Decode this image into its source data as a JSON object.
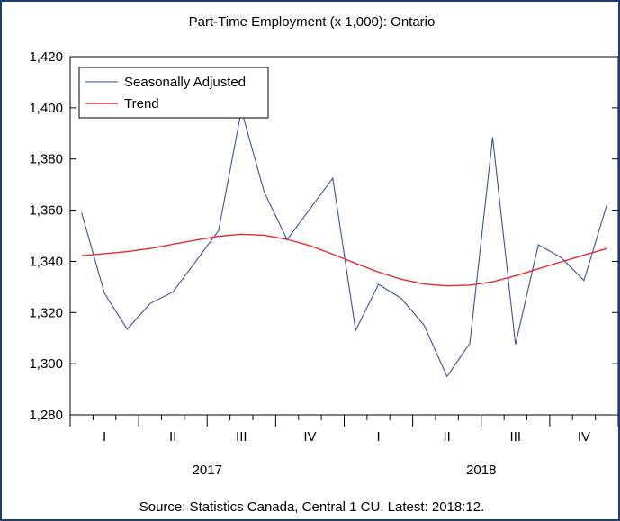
{
  "chart_data": {
    "type": "line",
    "title": "Part-Time Employment (x 1,000): Ontario",
    "source": "Source: Statistics Canada, Central 1 CU. Latest: 2018:12.",
    "x": [
      "2017:01",
      "2017:02",
      "2017:03",
      "2017:04",
      "2017:05",
      "2017:06",
      "2017:07",
      "2017:08",
      "2017:09",
      "2017:10",
      "2017:11",
      "2017:12",
      "2018:01",
      "2018:02",
      "2018:03",
      "2018:04",
      "2018:05",
      "2018:06",
      "2018:07",
      "2018:08",
      "2018:09",
      "2018:10",
      "2018:11",
      "2018:12"
    ],
    "quarter_labels": [
      "I",
      "II",
      "III",
      "IV",
      "I",
      "II",
      "III",
      "IV"
    ],
    "year_labels": [
      "2017",
      "2018"
    ],
    "ylim": [
      1280,
      1420
    ],
    "yticks": [
      1280,
      1300,
      1320,
      1340,
      1360,
      1380,
      1400,
      1420
    ],
    "ytick_labels": [
      "1,280",
      "1,300",
      "1,320",
      "1,340",
      "1,360",
      "1,380",
      "1,400",
      "1,420"
    ],
    "legend_position": "top-left",
    "series": [
      {
        "name": "Seasonally Adjusted",
        "color": "#3a4fa0",
        "values": [
          1359,
          1327.5,
          1313.5,
          1323.5,
          1328,
          1340,
          1352,
          1399,
          1367,
          1348.5,
          1360.5,
          1372.5,
          1313,
          1331,
          1325.5,
          1315,
          1295,
          1308,
          1388.5,
          1307.5,
          1346.5,
          1341.5,
          1332.5,
          1362
        ]
      },
      {
        "name": "Trend",
        "color": "#e32b2b",
        "values": [
          1342.2,
          1343,
          1343.8,
          1345,
          1346.7,
          1348.3,
          1349.8,
          1350.6,
          1350.2,
          1348.6,
          1346.1,
          1342.8,
          1339.2,
          1335.8,
          1333,
          1331.1,
          1330.4,
          1330.7,
          1332,
          1334.3,
          1337.1,
          1339.8,
          1342.4,
          1345
        ]
      }
    ]
  }
}
